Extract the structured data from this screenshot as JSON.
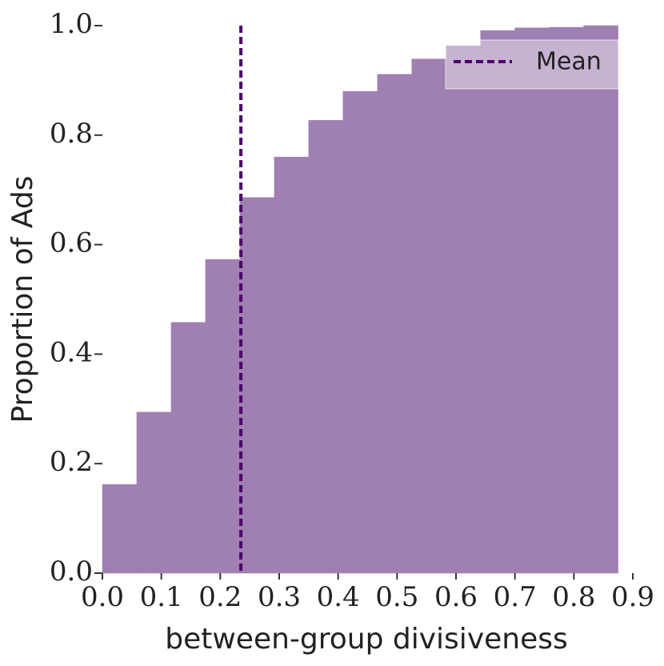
{
  "chart_data": {
    "type": "histogram",
    "xlabel": "between-group divisiveness",
    "ylabel": "Proportion of Ads",
    "bins": [
      0,
      0.0583,
      0.1167,
      0.175,
      0.2333,
      0.2917,
      0.35,
      0.4083,
      0.4667,
      0.525,
      0.5833,
      0.6417,
      0.7,
      0.7583,
      0.8167,
      0.875
    ],
    "values": [
      0.162,
      0.294,
      0.458,
      0.573,
      0.686,
      0.76,
      0.827,
      0.88,
      0.911,
      0.939,
      0.963,
      0.991,
      0.996,
      0.997,
      1.0
    ],
    "color": "#a07fb3",
    "mean": {
      "label": "Mean",
      "value": 0.235,
      "color": "#4b0068"
    },
    "xlim": [
      0,
      0.9
    ],
    "xticks": [
      {
        "value": 0,
        "label": "0.0"
      },
      0.1,
      0.2,
      0.3,
      0.4,
      0.5,
      0.6,
      0.7,
      0.8,
      0.9
    ],
    "ylim": [
      0,
      1
    ],
    "yticks": [
      {
        "value": 0,
        "label": "0.0"
      },
      0.2,
      0.4,
      0.6,
      0.8,
      {
        "value": 1,
        "label": "1.0"
      }
    ],
    "legend": "upper right"
  }
}
